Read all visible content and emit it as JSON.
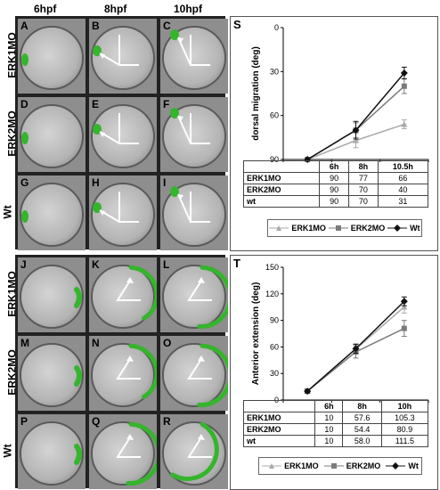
{
  "columns": [
    "6hpf",
    "8hpf",
    "10hpf"
  ],
  "top_rows": [
    "ERK1MO",
    "ERK2MO",
    "Wt"
  ],
  "bottom_rows": [
    "ERK1MO",
    "ERK2MO",
    "Wt"
  ],
  "top_letters": [
    "A",
    "B",
    "C",
    "D",
    "E",
    "F",
    "G",
    "H",
    "I"
  ],
  "bottom_letters": [
    "J",
    "K",
    "L",
    "M",
    "N",
    "O",
    "P",
    "Q",
    "R"
  ],
  "colors": {
    "green": "#35b52c",
    "erk1": "#a9a9a9",
    "erk2": "#7b7b7b",
    "wt": "#111111"
  },
  "chart_data": [
    {
      "panel": "S",
      "type": "line",
      "ylabel": "dorsal migration (deg)",
      "ylim": [
        90,
        0
      ],
      "yticks": [
        "0",
        "30",
        "60",
        "90"
      ],
      "categories": [
        "6h",
        "8h",
        "10.5h"
      ],
      "series": [
        {
          "name": "ERK1MO",
          "values": [
            90,
            77,
            66
          ],
          "marker": "triangle"
        },
        {
          "name": "ERK2MO",
          "values": [
            90,
            70,
            40
          ],
          "marker": "square"
        },
        {
          "name": "Wt",
          "values": [
            90,
            70,
            31
          ],
          "marker": "diamond"
        }
      ],
      "errors": [
        [
          0,
          5,
          3
        ],
        [
          0,
          5,
          5
        ],
        [
          0,
          6,
          4
        ]
      ],
      "table_rows": [
        {
          "label": "ERK1MO",
          "cells": [
            "90",
            "77",
            "66"
          ]
        },
        {
          "label": "ERK2MO",
          "cells": [
            "90",
            "70",
            "40"
          ]
        },
        {
          "label": "wt",
          "cells": [
            "90",
            "70",
            "31"
          ]
        }
      ]
    },
    {
      "panel": "T",
      "type": "line",
      "ylabel": "Anterior extension (deg)",
      "ylim": [
        0,
        150
      ],
      "yticks": [
        "0",
        "30",
        "60",
        "90",
        "120",
        "150"
      ],
      "categories": [
        "6h",
        "8h",
        "10h"
      ],
      "series": [
        {
          "name": "ERK1MO",
          "values": [
            10,
            57.6,
            105.3
          ],
          "marker": "triangle"
        },
        {
          "name": "ERK2MO",
          "values": [
            10,
            54.4,
            80.9
          ],
          "marker": "square"
        },
        {
          "name": "Wt",
          "values": [
            10,
            58.0,
            111.5
          ],
          "marker": "diamond"
        }
      ],
      "errors": [
        [
          2,
          6,
          7
        ],
        [
          2,
          7,
          9
        ],
        [
          2,
          5,
          5
        ]
      ],
      "table_rows": [
        {
          "label": "ERK1MO",
          "cells": [
            "10",
            "57.6",
            "105.3"
          ]
        },
        {
          "label": "ERK2MO",
          "cells": [
            "10",
            "54.4",
            "80.9"
          ]
        },
        {
          "label": "wt",
          "cells": [
            "10",
            "58.0",
            "111.5"
          ]
        }
      ]
    }
  ]
}
